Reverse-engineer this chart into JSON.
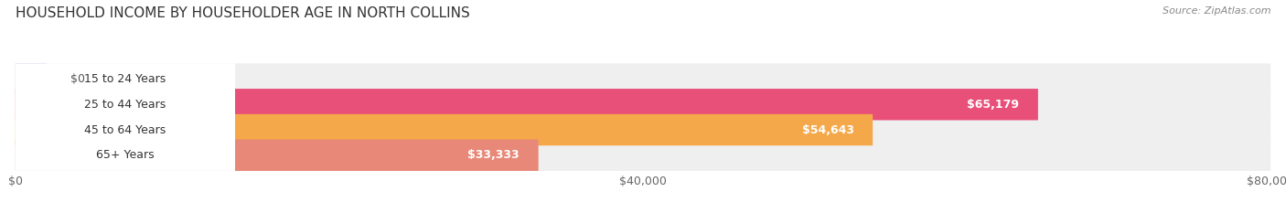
{
  "title": "HOUSEHOLD INCOME BY HOUSEHOLDER AGE IN NORTH COLLINS",
  "source": "Source: ZipAtlas.com",
  "categories": [
    "15 to 24 Years",
    "25 to 44 Years",
    "45 to 64 Years",
    "65+ Years"
  ],
  "values": [
    0,
    65179,
    54643,
    33333
  ],
  "labels": [
    "$0",
    "$65,179",
    "$54,643",
    "$33,333"
  ],
  "bar_colors": [
    "#b0b0e0",
    "#e8507a",
    "#f5a84a",
    "#e88878"
  ],
  "bar_bg_color": "#efefef",
  "xlim": [
    0,
    80000
  ],
  "xticks": [
    0,
    40000,
    80000
  ],
  "xticklabels": [
    "$0",
    "$40,000",
    "$80,000"
  ],
  "title_fontsize": 11,
  "source_fontsize": 8,
  "label_fontsize": 9,
  "tick_fontsize": 9,
  "bar_height": 0.62,
  "background_color": "#ffffff"
}
